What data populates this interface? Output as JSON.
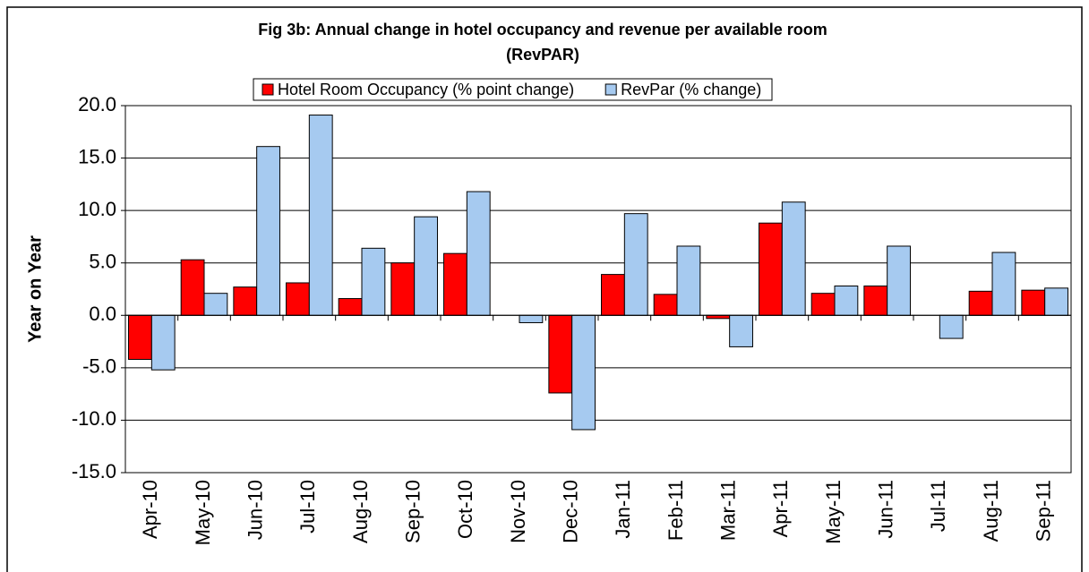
{
  "chart_data": {
    "type": "bar",
    "title": [
      "Fig 3b: Annual change in hotel occupancy and revenue per available room",
      "(RevPAR)"
    ],
    "y_label": "Year on Year",
    "categories": [
      "Apr-10",
      "May-10",
      "Jun-10",
      "Jul-10",
      "Aug-10",
      "Sep-10",
      "Oct-10",
      "Nov-10",
      "Dec-10",
      "Jan-11",
      "Feb-11",
      "Mar-11",
      "Apr-11",
      "May-11",
      "Jun-11",
      "Jul-11",
      "Aug-11",
      "Sep-11"
    ],
    "series": [
      {
        "name": "Hotel Room Occupancy (% point change)",
        "color": "#ff0000",
        "values": [
          -4.2,
          5.3,
          2.7,
          3.1,
          1.6,
          5.0,
          5.9,
          0,
          -7.4,
          3.9,
          2.0,
          -0.3,
          8.8,
          2.1,
          2.8,
          0,
          2.3,
          2.4
        ]
      },
      {
        "name": "RevPar (% change)",
        "color": "#a6caf0",
        "values": [
          -5.2,
          2.1,
          16.1,
          19.1,
          6.4,
          9.4,
          11.8,
          -0.7,
          -10.9,
          9.7,
          6.6,
          -3.0,
          10.8,
          2.8,
          6.6,
          -2.2,
          6.0,
          2.6
        ]
      }
    ],
    "ylim": [
      -15,
      20
    ],
    "yticks": [
      {
        "value": -15,
        "label": "-15.0"
      },
      {
        "value": -10,
        "label": "-10.0"
      },
      {
        "value": -5,
        "label": "-5.0"
      },
      {
        "value": 0,
        "label": "0.0"
      },
      {
        "value": 5,
        "label": "5.0"
      },
      {
        "value": 10,
        "label": "10.0"
      },
      {
        "value": 15,
        "label": "15.0"
      },
      {
        "value": 20,
        "label": "20.0"
      }
    ],
    "grid": true,
    "legend": "top"
  }
}
